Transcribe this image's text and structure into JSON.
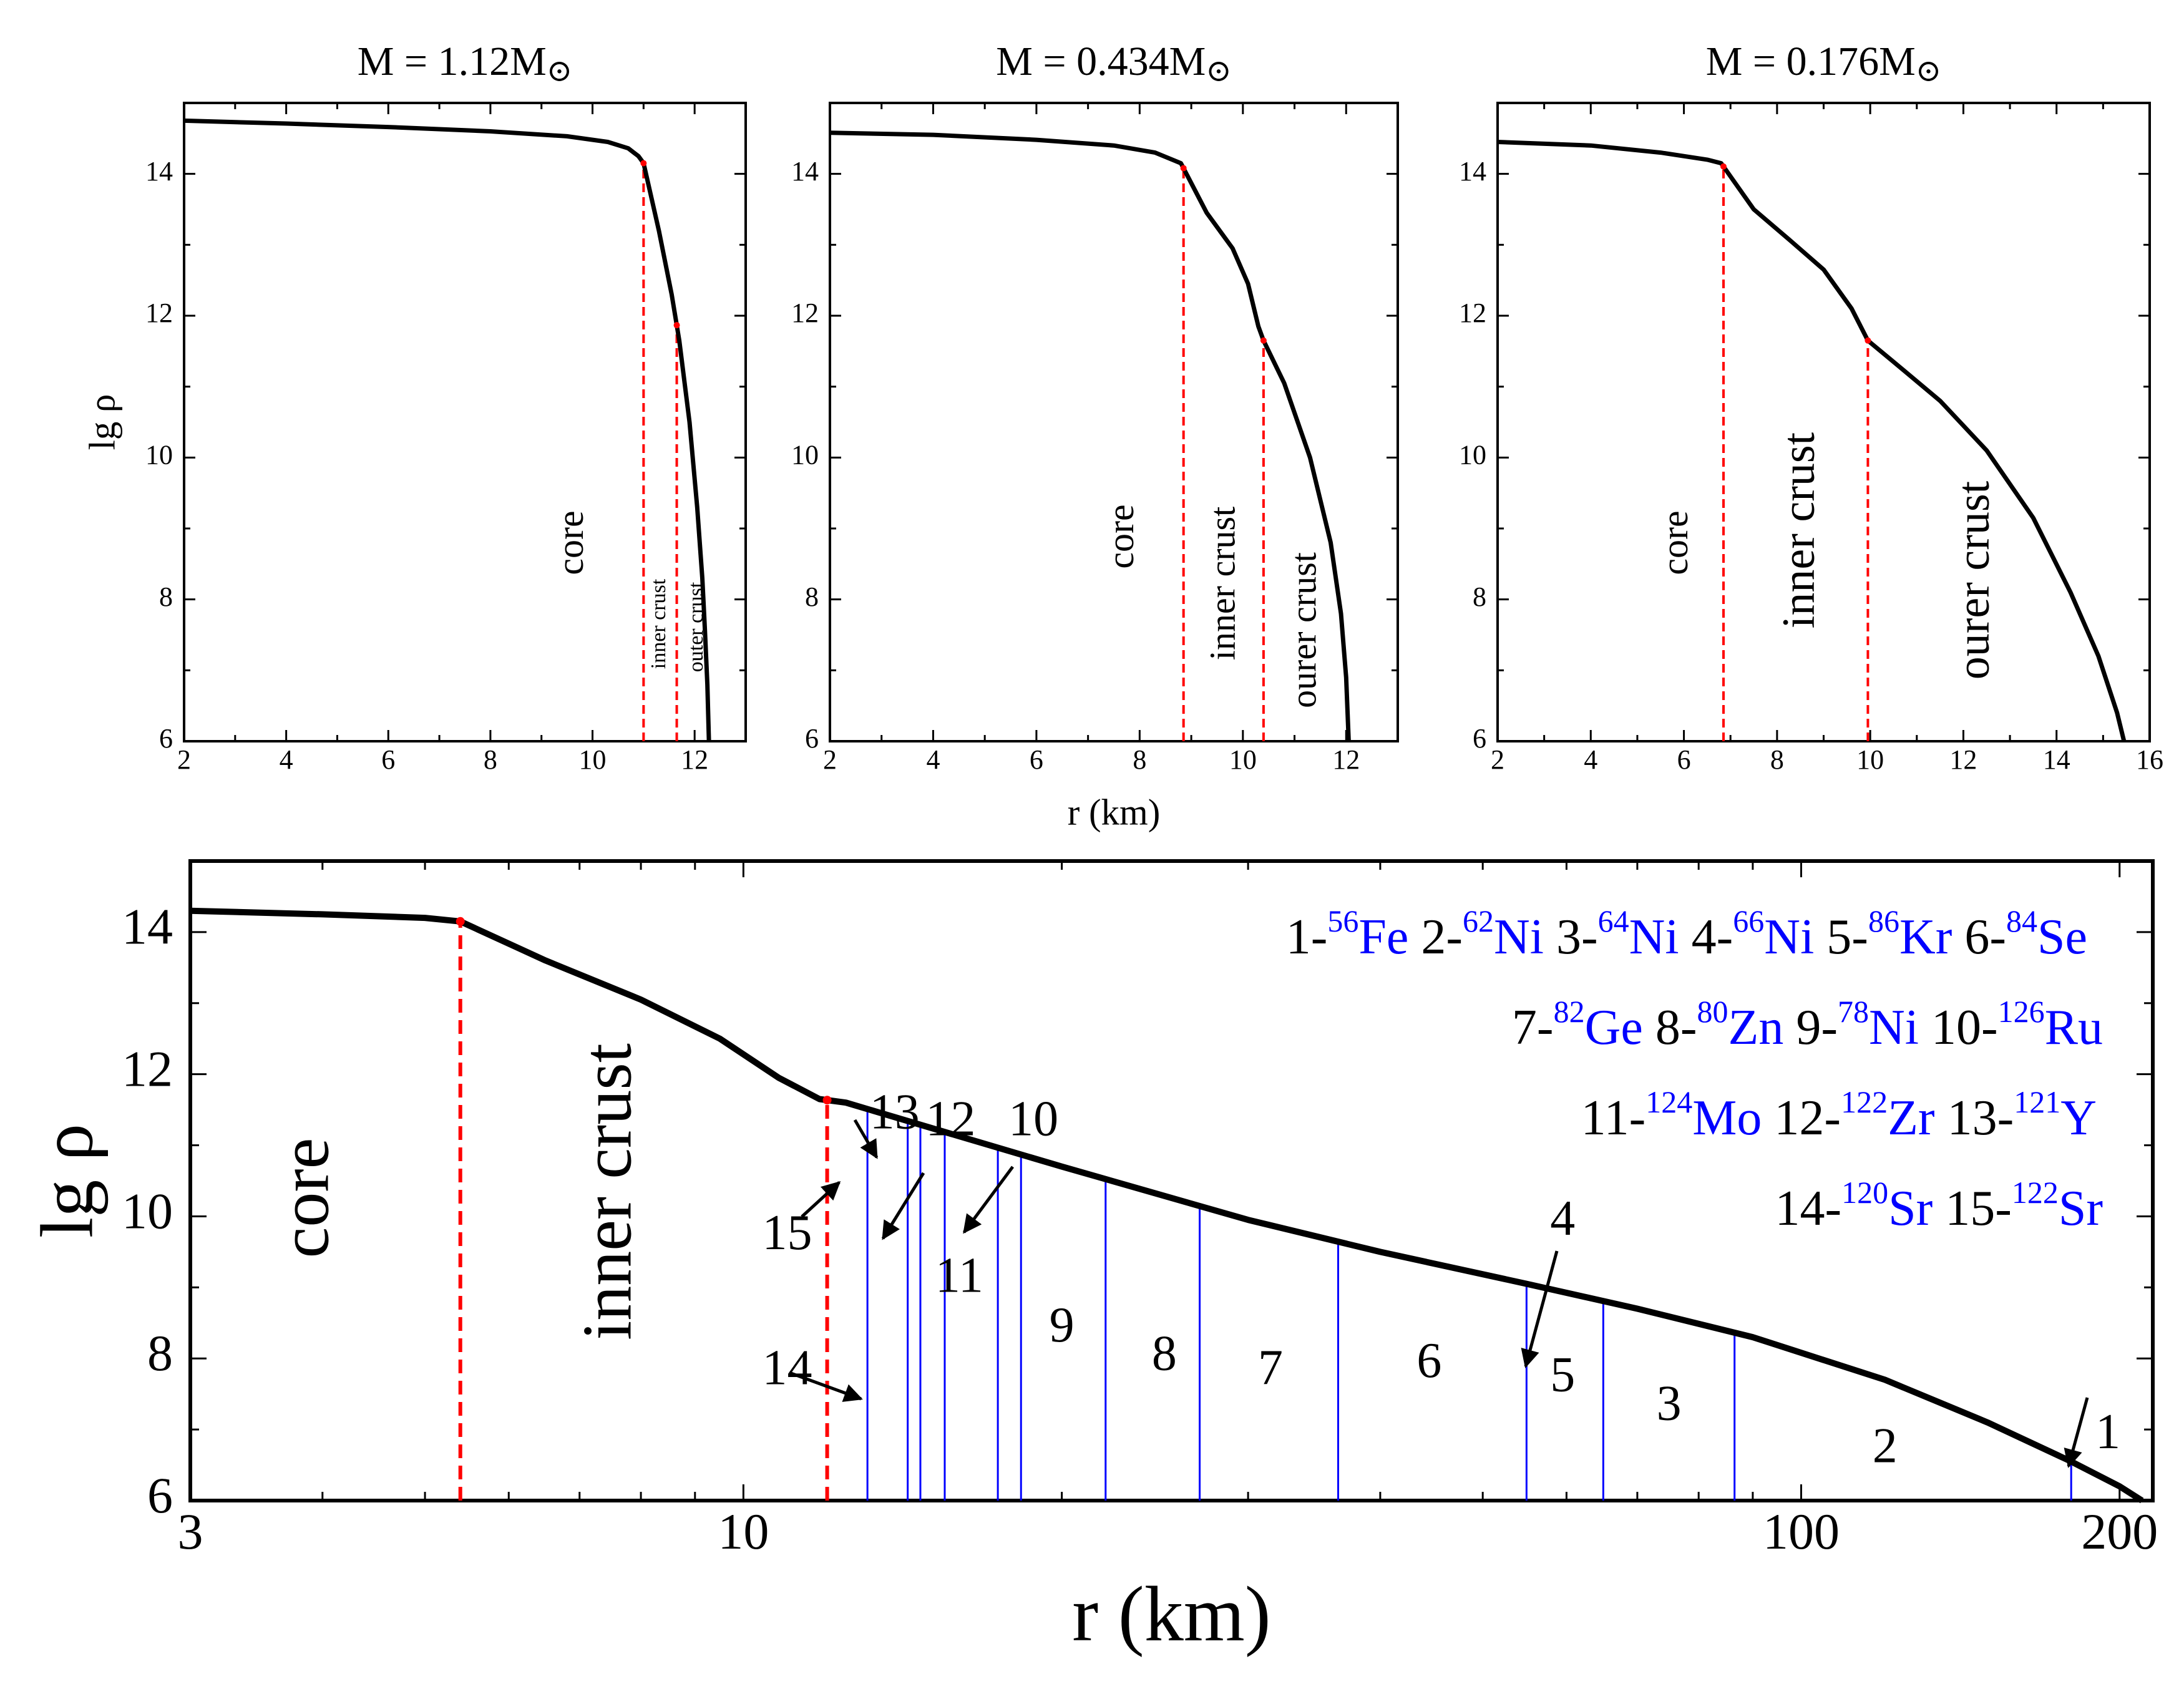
{
  "chart_data": [
    {
      "type": "line",
      "title": "M = 1.12M",
      "title_symbol": "⊙",
      "ylabel": "lg ρ",
      "xlabel": "",
      "xlim": [
        2,
        13
      ],
      "ylim": [
        6,
        15
      ],
      "x_ticks": [
        2,
        4,
        6,
        8,
        10,
        12
      ],
      "y_ticks": [
        6,
        8,
        10,
        12,
        14
      ],
      "grid": false,
      "series": [
        {
          "color": "#000000",
          "x": [
            2.0,
            4.0,
            6.0,
            8.0,
            9.5,
            10.3,
            10.7,
            10.9,
            11.0,
            11.3,
            11.55,
            11.7,
            11.9,
            12.05,
            12.15,
            12.2,
            12.25,
            12.28
          ],
          "y": [
            14.75,
            14.71,
            14.66,
            14.6,
            14.53,
            14.45,
            14.36,
            14.25,
            14.15,
            13.2,
            12.3,
            11.65,
            10.5,
            9.3,
            8.3,
            7.6,
            6.8,
            6.0
          ]
        }
      ],
      "boundaries": [
        11.0,
        11.65
      ],
      "annotations": [
        "core",
        "inner crust",
        "outer crust"
      ]
    },
    {
      "type": "line",
      "title": "M = 0.434M",
      "title_symbol": "⊙",
      "ylabel": "",
      "xlabel": "r (km)",
      "xlim": [
        2,
        13
      ],
      "ylim": [
        6,
        15
      ],
      "x_ticks": [
        2,
        4,
        6,
        8,
        10,
        12
      ],
      "y_ticks": [
        6,
        8,
        10,
        12,
        14
      ],
      "grid": false,
      "series": [
        {
          "color": "#000000",
          "x": [
            2.0,
            4.0,
            6.0,
            7.5,
            8.3,
            8.8,
            9.3,
            9.8,
            10.1,
            10.3,
            10.4,
            10.8,
            11.3,
            11.7,
            11.9,
            12.0,
            12.05
          ],
          "y": [
            14.58,
            14.55,
            14.48,
            14.4,
            14.3,
            14.15,
            13.45,
            12.95,
            12.45,
            11.85,
            11.65,
            11.05,
            10.0,
            8.8,
            7.8,
            6.9,
            6.0
          ]
        }
      ],
      "boundaries": [
        8.85,
        10.4
      ],
      "annotations": [
        "core",
        "inner crust",
        "ourer crust"
      ]
    },
    {
      "type": "line",
      "title": "M = 0.176M",
      "title_symbol": "⊙",
      "ylabel": "",
      "xlabel": "",
      "xlim": [
        2,
        16
      ],
      "ylim": [
        6,
        15
      ],
      "x_ticks": [
        2,
        4,
        6,
        8,
        10,
        12,
        14,
        16
      ],
      "y_ticks": [
        6,
        8,
        10,
        12,
        14
      ],
      "grid": false,
      "series": [
        {
          "color": "#000000",
          "x": [
            2.0,
            4.0,
            5.5,
            6.5,
            6.8,
            7.5,
            8.3,
            9.0,
            9.6,
            9.95,
            10.5,
            11.5,
            12.5,
            13.5,
            14.3,
            14.9,
            15.3,
            15.45
          ],
          "y": [
            14.45,
            14.4,
            14.3,
            14.2,
            14.15,
            13.5,
            13.05,
            12.65,
            12.1,
            11.65,
            11.35,
            10.8,
            10.1,
            9.15,
            8.1,
            7.2,
            6.4,
            6.0
          ]
        }
      ],
      "boundaries": [
        6.85,
        9.95
      ],
      "annotations": [
        "core",
        "inner crust",
        "ourer crust"
      ]
    },
    {
      "type": "line",
      "title": "",
      "ylabel": "lg ρ",
      "xlabel": "r (km)",
      "x_scale": "log",
      "xlim": [
        3,
        215
      ],
      "ylim": [
        6,
        15
      ],
      "x_ticks": [
        3,
        10,
        100,
        200
      ],
      "y_ticks": [
        6,
        8,
        10,
        12,
        14
      ],
      "grid": false,
      "series": [
        {
          "color": "#000000",
          "x": [
            3.0,
            4.0,
            5.0,
            5.4,
            6.5,
            8.0,
            9.5,
            10.8,
            11.8,
            12.5,
            15.0,
            20.0,
            30.0,
            40.0,
            55.0,
            70.0,
            90.0,
            120.0,
            150.0,
            180.0,
            200.0,
            210.0
          ],
          "y": [
            14.3,
            14.25,
            14.2,
            14.15,
            13.6,
            13.05,
            12.5,
            11.95,
            11.65,
            11.6,
            11.25,
            10.7,
            9.95,
            9.5,
            9.05,
            8.7,
            8.3,
            7.7,
            7.1,
            6.55,
            6.2,
            6.0
          ]
        }
      ],
      "boundaries": [
        5.4,
        12.0
      ],
      "nuclide_boundaries": [
        13.1,
        14.3,
        14.7,
        15.5,
        17.4,
        18.3,
        22.0,
        27.0,
        36.5,
        55.0,
        65.0,
        86.5,
        180.0
      ],
      "annotations": [
        "core",
        "inner crust"
      ],
      "region_labels": [
        {
          "text": "1",
          "x": 195,
          "y": 6.9
        },
        {
          "text": "2",
          "x": 120,
          "y": 6.7
        },
        {
          "text": "3",
          "x": 75,
          "y": 7.3
        },
        {
          "text": "4",
          "x": 59.5,
          "y": 9.9
        },
        {
          "text": "5",
          "x": 59.5,
          "y": 7.7
        },
        {
          "text": "6",
          "x": 44.5,
          "y": 7.9
        },
        {
          "text": "7",
          "x": 31.5,
          "y": 7.8
        },
        {
          "text": "8",
          "x": 25,
          "y": 8.0
        },
        {
          "text": "9",
          "x": 20,
          "y": 8.4
        },
        {
          "text": "10",
          "x": 18.8,
          "y": 11.3
        },
        {
          "text": "11",
          "x": 16,
          "y": 9.1
        },
        {
          "text": "12",
          "x": 15.7,
          "y": 11.3
        },
        {
          "text": "13",
          "x": 13.9,
          "y": 11.4
        },
        {
          "text": "14",
          "x": 11,
          "y": 7.8
        },
        {
          "text": "15",
          "x": 11,
          "y": 9.7
        }
      ]
    }
  ],
  "legend": [
    [
      {
        "index": "1-",
        "mass": "56",
        "element": "Fe"
      },
      {
        "index": "2-",
        "mass": "62",
        "element": "Ni"
      },
      {
        "index": "3-",
        "mass": "64",
        "element": "Ni"
      },
      {
        "index": "4-",
        "mass": "66",
        "element": "Ni"
      },
      {
        "index": "5-",
        "mass": "86",
        "element": "Kr"
      },
      {
        "index": "6-",
        "mass": "84",
        "element": "Se"
      }
    ],
    [
      {
        "index": "7-",
        "mass": "82",
        "element": "Ge"
      },
      {
        "index": "8-",
        "mass": "80",
        "element": "Zn"
      },
      {
        "index": "9-",
        "mass": "78",
        "element": "Ni"
      },
      {
        "index": "10-",
        "mass": "126",
        "element": "Ru"
      }
    ],
    [
      {
        "index": "11-",
        "mass": "124",
        "element": "Mo"
      },
      {
        "index": "12-",
        "mass": "122",
        "element": "Zr"
      },
      {
        "index": "13-",
        "mass": "121",
        "element": "Y"
      }
    ],
    [
      {
        "index": "14-",
        "mass": "120",
        "element": "Sr"
      },
      {
        "index": "15-",
        "mass": "122",
        "element": "Sr"
      }
    ]
  ],
  "colors": {
    "curve": "#000000",
    "boundary": "#ff0000",
    "nuclide_line": "#0000ff",
    "element_text": "#0000ff"
  }
}
